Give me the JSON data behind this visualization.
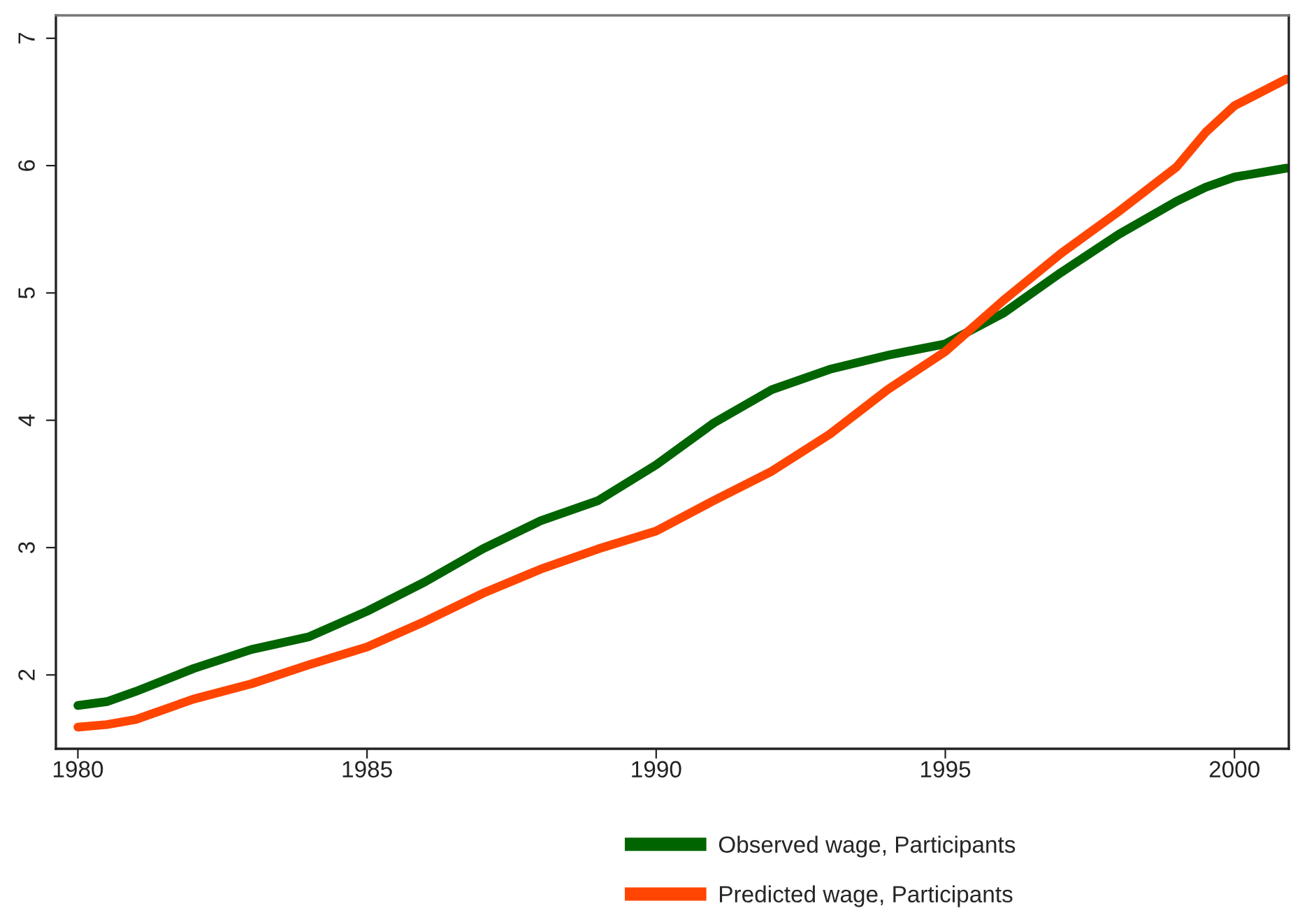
{
  "chart_data": {
    "type": "line",
    "x": [
      1980,
      1980.5,
      1981,
      1982,
      1983,
      1984,
      1985,
      1986,
      1987,
      1988,
      1989,
      1990,
      1991,
      1992,
      1993,
      1994,
      1995,
      1996,
      1997,
      1998,
      1999,
      1999.5,
      2000,
      2000.9
    ],
    "series": [
      {
        "name": "Observed wage, Participants",
        "color": "#006400",
        "values": [
          1.76,
          1.79,
          1.87,
          2.05,
          2.2,
          2.3,
          2.5,
          2.73,
          2.99,
          3.21,
          3.37,
          3.65,
          3.98,
          4.24,
          4.4,
          4.51,
          4.6,
          4.84,
          5.16,
          5.46,
          5.72,
          5.83,
          5.91,
          5.98
        ]
      },
      {
        "name": "Predicted wage, Participants",
        "color": "#ff4500",
        "values": [
          1.59,
          1.61,
          1.65,
          1.81,
          1.93,
          2.08,
          2.22,
          2.42,
          2.64,
          2.83,
          2.99,
          3.13,
          3.37,
          3.6,
          3.89,
          4.24,
          4.54,
          4.94,
          5.31,
          5.64,
          5.99,
          6.26,
          6.47,
          6.68
        ]
      }
    ],
    "xlim": [
      1979.62,
      2000.94
    ],
    "ylim": [
      1.42,
      7.18
    ],
    "xticks": [
      1980,
      1985,
      1990,
      1995,
      2000
    ],
    "yticks": [
      2,
      3,
      4,
      5,
      6,
      7
    ],
    "grid": false,
    "legend": "bottom",
    "marker": "none",
    "line_style": "solid"
  }
}
